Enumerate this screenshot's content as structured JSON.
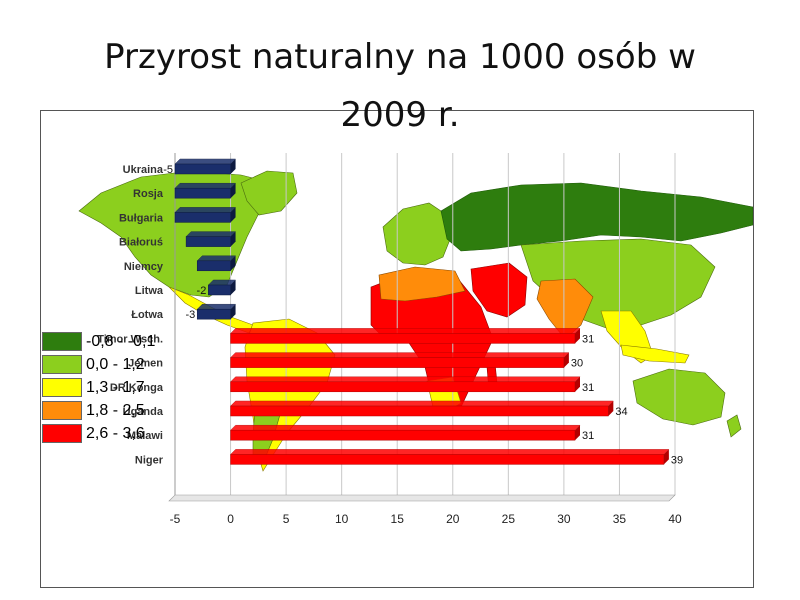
{
  "slide": {
    "title": "Przyrost naturalny na 1000 osób w 2009 r."
  },
  "legend": {
    "items": [
      {
        "label": "-0,8 - -0,1",
        "color": "#2e7d0e"
      },
      {
        "label": "0,0 - 1,2",
        "color": "#8ccf1e"
      },
      {
        "label": "1,3 - 1,7",
        "color": "#ffff00"
      },
      {
        "label": "1,8 - 2,5",
        "color": "#ff8c0a"
      },
      {
        "label": "2,6 - 3,6",
        "color": "#ff0000"
      }
    ]
  },
  "chart_data": {
    "type": "bar",
    "orientation": "horizontal",
    "title": "",
    "xlabel": "",
    "ylabel": "",
    "xlim": [
      -5,
      40
    ],
    "x_ticks": [
      -5,
      0,
      5,
      10,
      15,
      20,
      25,
      30,
      35,
      40
    ],
    "grid": "vertical",
    "categories": [
      "Ukraina",
      "Rosja",
      "Bułgaria",
      "Białoruś",
      "Niemcy",
      "Litwa",
      "Łotwa",
      "Timor Wsch.",
      "Jemen",
      "DR Konga",
      "Uganda",
      "Malawi",
      "Niger"
    ],
    "values": [
      -5,
      -5,
      -5,
      -4,
      -3,
      -2,
      -3,
      31,
      30,
      31,
      34,
      31,
      39
    ],
    "value_labels": [
      "-5",
      "",
      "",
      "",
      "",
      "-2",
      "-3",
      "31",
      "30",
      "31",
      "34",
      "31",
      "39"
    ],
    "colors": {
      "negative": "#1a2e6b",
      "positive": "#ff0000"
    }
  }
}
